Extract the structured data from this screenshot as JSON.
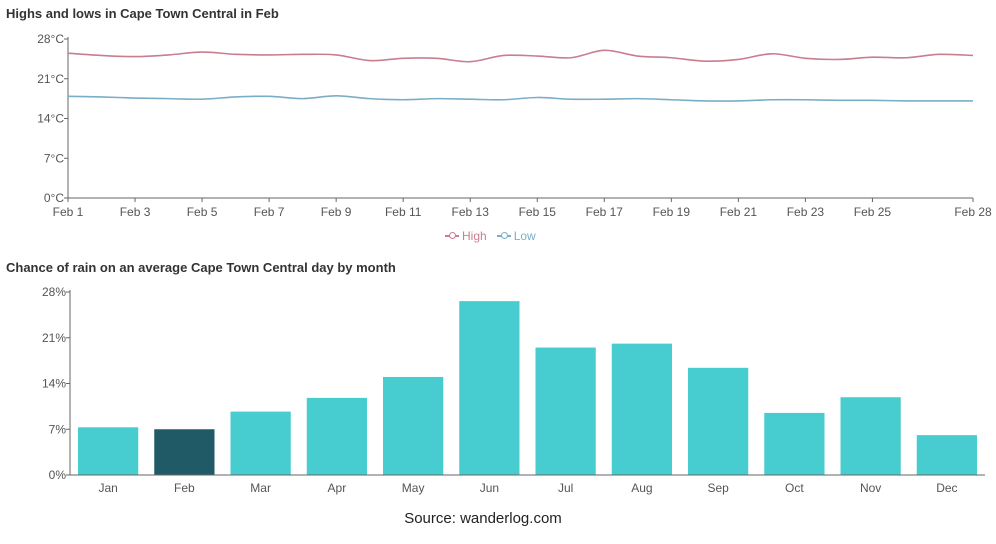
{
  "chart_data": [
    {
      "type": "line",
      "title": "Highs and lows in Cape Town Central in Feb",
      "x": [
        "Feb 1",
        "Feb 2",
        "Feb 3",
        "Feb 4",
        "Feb 5",
        "Feb 6",
        "Feb 7",
        "Feb 8",
        "Feb 9",
        "Feb 10",
        "Feb 11",
        "Feb 12",
        "Feb 13",
        "Feb 14",
        "Feb 15",
        "Feb 16",
        "Feb 17",
        "Feb 18",
        "Feb 19",
        "Feb 20",
        "Feb 21",
        "Feb 22",
        "Feb 23",
        "Feb 24",
        "Feb 25",
        "Feb 26",
        "Feb 27",
        "Feb 28"
      ],
      "xtick_labels": [
        "Feb 1",
        "Feb 3",
        "Feb 5",
        "Feb 7",
        "Feb 9",
        "Feb 11",
        "Feb 13",
        "Feb 15",
        "Feb 17",
        "Feb 19",
        "Feb 21",
        "Feb 23",
        "Feb 25",
        "Feb 28"
      ],
      "ytick_labels": [
        "0°C",
        "7°C",
        "14°C",
        "21°C",
        "28°C"
      ],
      "ylim": [
        0,
        28
      ],
      "series": [
        {
          "name": "High",
          "color": "#c97d8f",
          "values": [
            25.5,
            25.1,
            24.9,
            25.2,
            25.7,
            25.3,
            25.2,
            25.3,
            25.2,
            24.2,
            24.6,
            24.6,
            24.0,
            25.1,
            25.0,
            24.7,
            26.0,
            25.0,
            24.7,
            24.1,
            24.4,
            25.4,
            24.6,
            24.4,
            24.8,
            24.7,
            25.3,
            25.1
          ]
        },
        {
          "name": "Low",
          "color": "#7aaec7",
          "values": [
            17.9,
            17.8,
            17.6,
            17.5,
            17.4,
            17.8,
            17.9,
            17.5,
            18.0,
            17.5,
            17.3,
            17.5,
            17.4,
            17.3,
            17.7,
            17.4,
            17.4,
            17.5,
            17.3,
            17.1,
            17.1,
            17.3,
            17.3,
            17.2,
            17.2,
            17.1,
            17.1,
            17.1
          ]
        }
      ],
      "legend": "bottom"
    },
    {
      "type": "bar",
      "title": "Chance of rain on an average Cape Town Central day by month",
      "categories": [
        "Jan",
        "Feb",
        "Mar",
        "Apr",
        "May",
        "Jun",
        "Jul",
        "Aug",
        "Sep",
        "Oct",
        "Nov",
        "Dec"
      ],
      "values": [
        7.3,
        7.0,
        9.7,
        11.8,
        15.0,
        26.6,
        19.5,
        20.1,
        16.4,
        9.5,
        11.9,
        6.1
      ],
      "highlight": "Feb",
      "bar_color": "#47cdd0",
      "highlight_color": "#1f5a66",
      "ytick_labels": [
        "0%",
        "7%",
        "14%",
        "21%",
        "28%"
      ],
      "ylim": [
        0,
        28
      ]
    }
  ],
  "legend": {
    "high": "High",
    "low": "Low",
    "high_color": "#c97d8f",
    "low_color": "#7aaec7"
  },
  "source": "Source: wanderlog.com"
}
